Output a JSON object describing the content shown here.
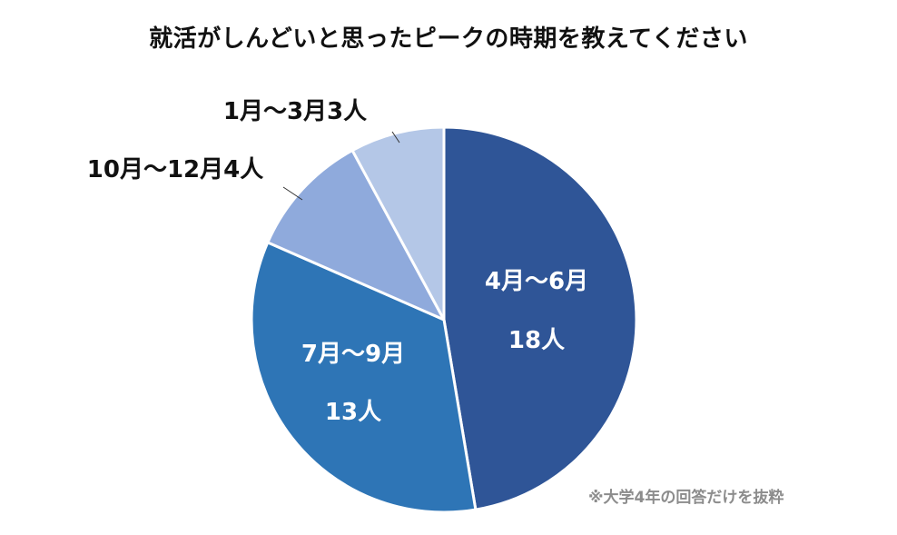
{
  "chart_data": {
    "type": "pie",
    "title": "就活がしんどいと思ったピークの時期を教えてください",
    "start_angle_deg": 0,
    "direction": "clockwise",
    "slices": [
      {
        "label": "4月～6月",
        "count_label": "18人",
        "value": 18,
        "color": "#2f5597",
        "label_position": "inside"
      },
      {
        "label": "7月～9月",
        "count_label": "13人",
        "value": 13,
        "color": "#2e75b6",
        "label_position": "inside"
      },
      {
        "label": "10月～12月",
        "count_label": "4人",
        "value": 4,
        "color": "#8faadc",
        "label_position": "outside"
      },
      {
        "label": "1月～3月",
        "count_label": "3人",
        "value": 3,
        "color": "#b4c7e7",
        "label_position": "outside"
      }
    ]
  },
  "footnote": "※大学4年の回答だけを抜粋"
}
